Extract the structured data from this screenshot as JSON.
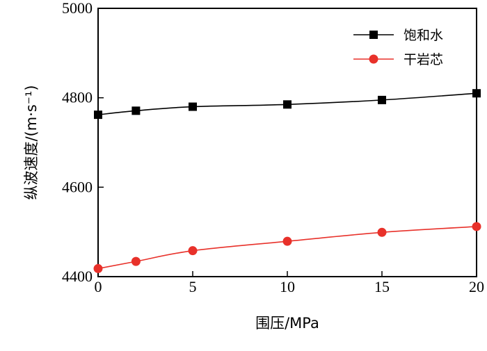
{
  "chart_data": {
    "type": "line",
    "xlabel": "围压/MPa",
    "ylabel": "纵波速度/(m·s⁻¹)",
    "xlim": [
      0,
      20
    ],
    "ylim": [
      4400,
      5000
    ],
    "xticks": [
      "0",
      "5",
      "10",
      "15",
      "20"
    ],
    "yticks": [
      "4400",
      "4600",
      "4800",
      "5000"
    ],
    "grid": false,
    "legend_position": "top-right",
    "series": [
      {
        "name": "饱和水",
        "color": "#000000",
        "marker": "square",
        "x": [
          0,
          2,
          5,
          10,
          15,
          20
        ],
        "y": [
          4762,
          4771,
          4780,
          4785,
          4795,
          4810
        ]
      },
      {
        "name": "干岩芯",
        "color": "#e8312a",
        "marker": "circle",
        "x": [
          0,
          2,
          5,
          10,
          15,
          20
        ],
        "y": [
          4418,
          4434,
          4458,
          4479,
          4499,
          4512
        ]
      }
    ]
  }
}
